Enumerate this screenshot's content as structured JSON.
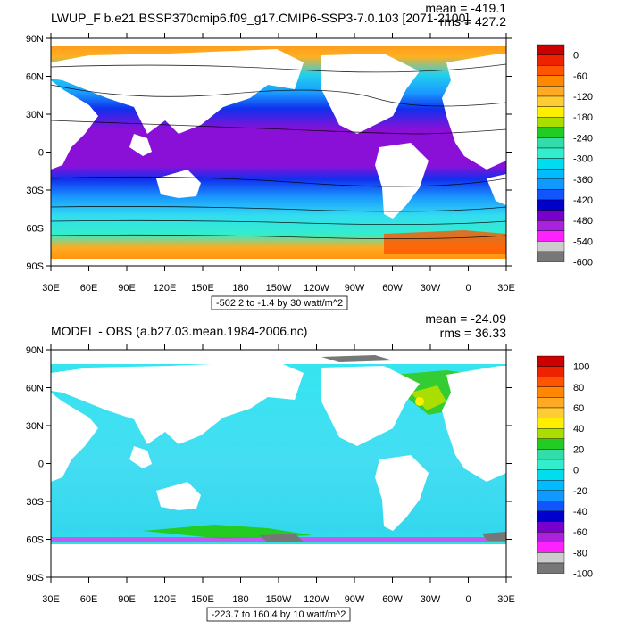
{
  "panels": [
    {
      "title": "LWUP_F b.e21.BSSP370cmip6.f09_g17.CMIP6-SSP3-7.0.103 [2071-2100]",
      "mean": "mean = -419.1",
      "rms": "rms = 427.2",
      "info": "-502.2 to -1.4 by 30 watt/m^2",
      "colorbar_labels": [
        "0",
        "-60",
        "-120",
        "-180",
        "-240",
        "-300",
        "-360",
        "-420",
        "-480",
        "-540",
        "-600"
      ],
      "colorbar_colors": [
        "#cc0000",
        "#ee2200",
        "#ff5500",
        "#ff8800",
        "#ffaa22",
        "#ffcc33",
        "#ffee00",
        "#aadd00",
        "#22cc22",
        "#33ddaa",
        "#33eecc",
        "#00ddee",
        "#00bbff",
        "#1199ff",
        "#1155ff",
        "#0000cc",
        "#7700cc",
        "#aa22dd",
        "#ff22ff",
        "#cccccc",
        "#777777"
      ]
    },
    {
      "title": "MODEL - OBS (a.b27.03.mean.1984-2006.nc)",
      "mean": "mean = -24.09",
      "rms": "rms = 36.33",
      "info": "-223.7 to 160.4 by 10 watt/m^2",
      "colorbar_labels": [
        "100",
        "80",
        "60",
        "40",
        "20",
        "0",
        "-20",
        "-40",
        "-60",
        "-80",
        "-100"
      ],
      "colorbar_colors": [
        "#cc0000",
        "#ee2200",
        "#ff5500",
        "#ff8800",
        "#ffaa22",
        "#ffcc33",
        "#ffee00",
        "#aadd00",
        "#22cc22",
        "#33ddaa",
        "#33eecc",
        "#00ddee",
        "#00bbff",
        "#1199ff",
        "#1155ff",
        "#0000cc",
        "#7700cc",
        "#aa22dd",
        "#ff22ff",
        "#cccccc",
        "#777777"
      ]
    }
  ],
  "lat_labels": [
    "90N",
    "60N",
    "30N",
    "0",
    "30S",
    "60S",
    "90S"
  ],
  "lon_labels": [
    "30E",
    "60E",
    "90E",
    "120E",
    "150E",
    "180",
    "150W",
    "120W",
    "90W",
    "60W",
    "30W",
    "0",
    "30E"
  ]
}
